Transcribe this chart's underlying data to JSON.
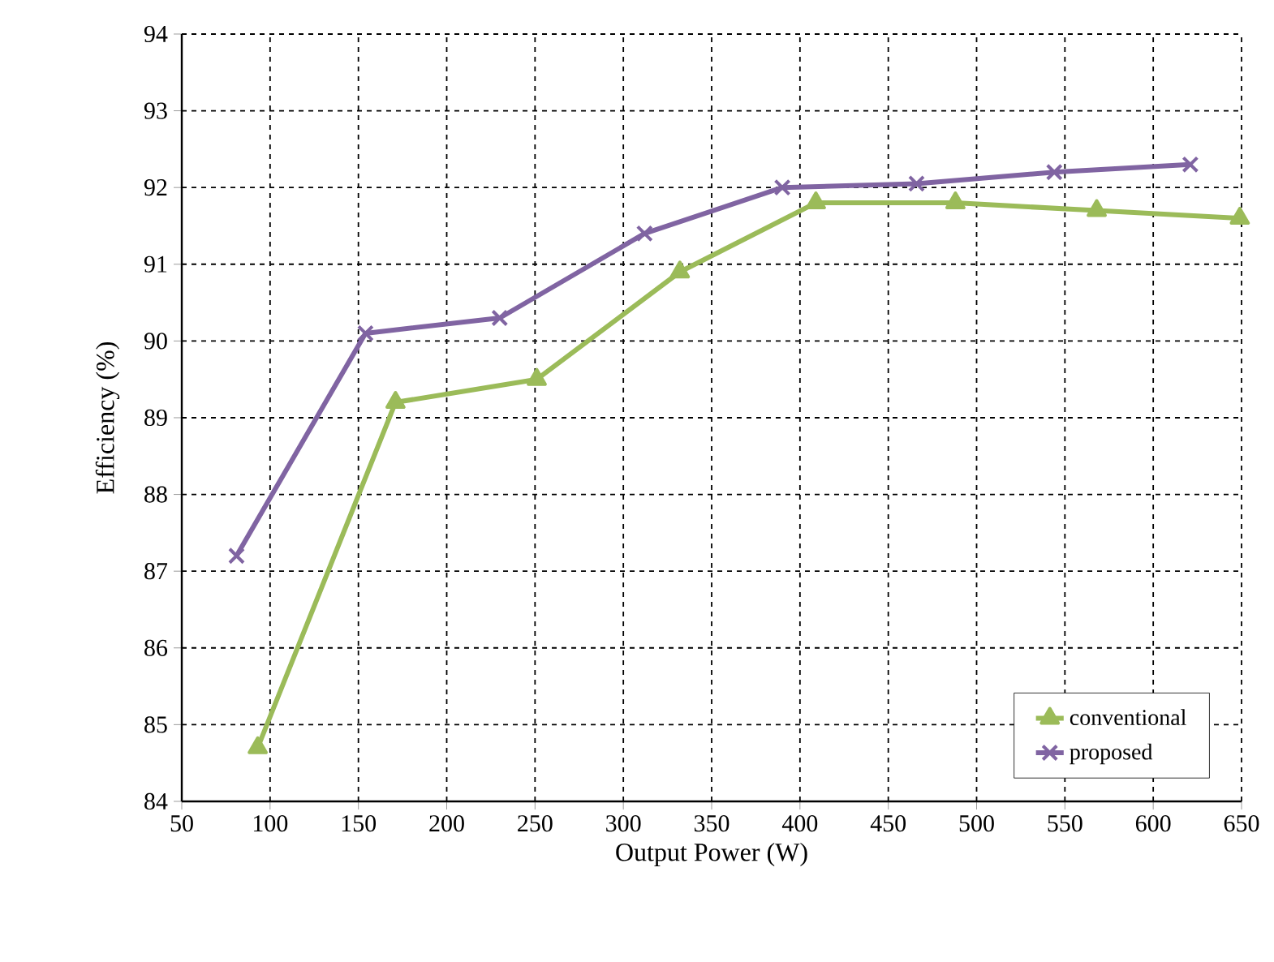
{
  "chart_data": {
    "type": "line",
    "xlabel": "Output Power (W)",
    "ylabel": "Efficiency (%)",
    "xlim": [
      50,
      650
    ],
    "xticks": [
      50,
      100,
      150,
      200,
      250,
      300,
      350,
      400,
      450,
      500,
      550,
      600,
      650
    ],
    "ylim": [
      84,
      94
    ],
    "yticks": [
      84,
      85,
      86,
      87,
      88,
      89,
      90,
      91,
      92,
      93,
      94
    ],
    "grid": true,
    "legend": "bottom right",
    "line_style": "solid",
    "series": [
      {
        "name": "conventional",
        "color": "#9bbb59",
        "marker": "triangle",
        "x": [
          93,
          171,
          251,
          332,
          409,
          488,
          568,
          649
        ],
        "values": [
          84.7,
          89.2,
          89.5,
          90.9,
          91.8,
          91.8,
          91.7,
          91.6
        ]
      },
      {
        "name": "proposed",
        "color": "#8064a2",
        "marker": "cross",
        "x": [
          81,
          154,
          230,
          312,
          390,
          466,
          544,
          621
        ],
        "values": [
          87.2,
          90.1,
          90.3,
          91.4,
          92.0,
          92.05,
          92.2,
          92.3
        ]
      }
    ]
  }
}
